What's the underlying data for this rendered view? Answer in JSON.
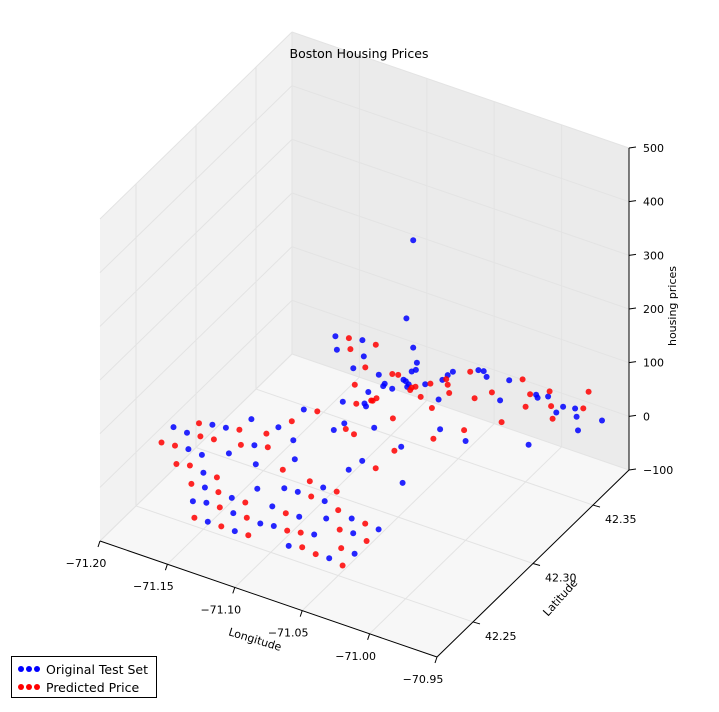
{
  "chart_data": {
    "type": "scatter",
    "title": "Boston Housing Prices",
    "xlabel": "Longitude",
    "ylabel": "Latitude",
    "zlabel": "housing prices",
    "xlim": [
      -71.2,
      -70.95
    ],
    "ylim": [
      42.22,
      42.38
    ],
    "zlim": [
      -100,
      500
    ],
    "x_ticks": [
      "−71.20",
      "−71.15",
      "−71.10",
      "−71.05",
      "−71.00",
      "−70.95"
    ],
    "y_ticks": [
      "42.25",
      "42.30",
      "42.35"
    ],
    "z_ticks": [
      "−100",
      "0",
      "100",
      "200",
      "300",
      "400",
      "500"
    ],
    "grid": true,
    "legend_position": "lower-left",
    "series": [
      {
        "name": "Original Test Set",
        "color": "#0000ff",
        "points": [
          [
            -71.03,
            42.29,
            455
          ],
          [
            -71.035,
            42.29,
            305
          ],
          [
            -71.03,
            42.29,
            255
          ],
          [
            -71.028,
            42.29,
            215
          ],
          [
            -71.04,
            42.3,
            180
          ],
          [
            -71.045,
            42.31,
            170
          ],
          [
            -71.03,
            42.3,
            165
          ],
          [
            -71.05,
            42.295,
            150
          ],
          [
            -71.02,
            42.3,
            145
          ],
          [
            -71.06,
            42.3,
            140
          ],
          [
            -71.055,
            42.31,
            130
          ],
          [
            -71.035,
            42.32,
            125
          ],
          [
            -71.01,
            42.29,
            120
          ],
          [
            -71.065,
            42.29,
            115
          ],
          [
            -71.05,
            42.28,
            110
          ],
          [
            -71.04,
            42.33,
            108
          ],
          [
            -71.07,
            42.31,
            105
          ],
          [
            -71.02,
            42.34,
            100
          ],
          [
            -71.06,
            42.32,
            95
          ],
          [
            -71.03,
            42.28,
            92
          ],
          [
            -71.075,
            42.3,
            90
          ],
          [
            -71.045,
            42.34,
            88
          ],
          [
            -71.0,
            42.3,
            85
          ],
          [
            -71.08,
            42.28,
            80
          ],
          [
            -71.035,
            42.35,
            78
          ],
          [
            -71.05,
            42.27,
            70
          ],
          [
            -71.01,
            42.34,
            65
          ],
          [
            -71.07,
            42.33,
            60
          ],
          [
            -71.02,
            42.27,
            55
          ],
          [
            -71.04,
            42.36,
            50
          ],
          [
            -71.06,
            42.27,
            45
          ],
          [
            -71.09,
            42.3,
            40
          ],
          [
            -71.0,
            42.36,
            35
          ],
          [
            -70.98,
            42.33,
            30
          ],
          [
            -71.03,
            42.37,
            20
          ],
          [
            -71.01,
            42.37,
            10
          ],
          [
            -70.99,
            42.37,
            5
          ],
          [
            -70.97,
            42.36,
            0
          ],
          [
            -70.98,
            42.37,
            -5
          ],
          [
            -70.995,
            42.37,
            -10
          ],
          [
            -71.01,
            42.38,
            -15
          ],
          [
            -70.99,
            42.38,
            -20
          ],
          [
            -70.97,
            42.38,
            -25
          ],
          [
            -71.08,
            42.34,
            40
          ],
          [
            -71.1,
            42.34,
            35
          ],
          [
            -71.12,
            42.35,
            30
          ],
          [
            -71.14,
            42.35,
            25
          ],
          [
            -71.13,
            42.36,
            30
          ],
          [
            -71.15,
            42.36,
            20
          ],
          [
            -71.11,
            42.33,
            60
          ],
          [
            -71.09,
            42.32,
            55
          ],
          [
            -71.1,
            42.31,
            50
          ],
          [
            -71.12,
            42.3,
            40
          ],
          [
            -71.11,
            42.28,
            35
          ],
          [
            -71.13,
            42.27,
            30
          ],
          [
            -71.14,
            42.26,
            28
          ],
          [
            -71.12,
            42.26,
            25
          ],
          [
            -71.1,
            42.27,
            30
          ],
          [
            -71.09,
            42.25,
            28
          ],
          [
            -71.08,
            42.25,
            30
          ],
          [
            -71.07,
            42.26,
            25
          ],
          [
            -71.06,
            42.25,
            30
          ],
          [
            -71.05,
            42.24,
            28
          ],
          [
            -71.13,
            42.29,
            20
          ],
          [
            -71.15,
            42.29,
            18
          ],
          [
            -71.16,
            42.28,
            15
          ],
          [
            -71.17,
            42.28,
            12
          ],
          [
            -71.18,
            42.27,
            10
          ],
          [
            -71.17,
            42.26,
            10
          ],
          [
            -71.19,
            42.27,
            12
          ],
          [
            -71.16,
            42.26,
            8
          ],
          [
            -71.15,
            42.25,
            5
          ],
          [
            -71.14,
            42.24,
            8
          ],
          [
            -71.13,
            42.23,
            10
          ],
          [
            -71.12,
            42.24,
            6
          ],
          [
            -71.11,
            42.23,
            8
          ],
          [
            -71.1,
            42.22,
            5
          ],
          [
            -71.09,
            42.23,
            6
          ],
          [
            -71.14,
            42.23,
            4
          ],
          [
            -71.12,
            42.22,
            5
          ],
          [
            -71.11,
            42.25,
            10
          ],
          [
            -71.04,
            42.25,
            15
          ],
          [
            -71.03,
            42.24,
            18
          ],
          [
            -71.02,
            42.25,
            12
          ],
          [
            -71.05,
            42.23,
            20
          ],
          [
            -71.03,
            42.22,
            15
          ],
          [
            -71.06,
            42.22,
            12
          ],
          [
            -71.08,
            42.23,
            10
          ],
          [
            -71.07,
            42.24,
            14
          ],
          [
            -71.09,
            42.24,
            16
          ],
          [
            -71.02,
            42.23,
            10
          ]
        ]
      },
      {
        "name": "Predicted Price",
        "color": "#ff0000",
        "points": [
          [
            -71.05,
            42.3,
            165
          ],
          [
            -71.04,
            42.3,
            150
          ],
          [
            -71.035,
            42.31,
            140
          ],
          [
            -71.06,
            42.29,
            130
          ],
          [
            -71.025,
            42.3,
            125
          ],
          [
            -71.05,
            42.31,
            115
          ],
          [
            -71.045,
            42.29,
            110
          ],
          [
            -71.03,
            42.32,
            105
          ],
          [
            -71.07,
            42.3,
            100
          ],
          [
            -71.015,
            42.29,
            98
          ],
          [
            -71.055,
            42.32,
            95
          ],
          [
            -71.04,
            42.33,
            90
          ],
          [
            -71.065,
            42.28,
            85
          ],
          [
            -71.02,
            42.33,
            82
          ],
          [
            -71.035,
            42.28,
            80
          ],
          [
            -71.075,
            42.31,
            78
          ],
          [
            -71.01,
            42.31,
            75
          ],
          [
            -71.05,
            42.34,
            70
          ],
          [
            -71.04,
            42.27,
            65
          ],
          [
            -71.08,
            42.29,
            60
          ],
          [
            -71.0,
            42.33,
            55
          ],
          [
            -71.06,
            42.33,
            50
          ],
          [
            -71.025,
            42.35,
            45
          ],
          [
            -71.05,
            42.36,
            40
          ],
          [
            -71.0,
            42.35,
            40
          ],
          [
            -70.98,
            42.35,
            35
          ],
          [
            -71.02,
            42.37,
            30
          ],
          [
            -71.0,
            42.37,
            25
          ],
          [
            -70.98,
            42.38,
            20
          ],
          [
            -70.975,
            42.37,
            15
          ],
          [
            -71.01,
            42.365,
            22
          ],
          [
            -70.99,
            42.36,
            28
          ],
          [
            -71.09,
            42.34,
            45
          ],
          [
            -71.11,
            42.34,
            40
          ],
          [
            -71.13,
            42.35,
            35
          ],
          [
            -71.12,
            42.36,
            30
          ],
          [
            -71.14,
            42.36,
            25
          ],
          [
            -71.1,
            42.32,
            60
          ],
          [
            -71.09,
            42.31,
            55
          ],
          [
            -71.11,
            42.3,
            45
          ],
          [
            -71.12,
            42.29,
            40
          ],
          [
            -71.12,
            42.27,
            35
          ],
          [
            -71.13,
            42.28,
            30
          ],
          [
            -71.1,
            42.26,
            32
          ],
          [
            -71.08,
            42.26,
            28
          ],
          [
            -71.07,
            42.25,
            30
          ],
          [
            -71.06,
            42.26,
            26
          ],
          [
            -71.05,
            42.25,
            22
          ],
          [
            -71.14,
            42.27,
            22
          ],
          [
            -71.15,
            42.28,
            20
          ],
          [
            -71.16,
            42.27,
            15
          ],
          [
            -71.17,
            42.27,
            12
          ],
          [
            -71.18,
            42.26,
            8
          ],
          [
            -71.16,
            42.25,
            10
          ],
          [
            -71.15,
            42.24,
            6
          ],
          [
            -71.14,
            42.25,
            5
          ],
          [
            -71.13,
            42.24,
            8
          ],
          [
            -71.12,
            42.23,
            10
          ],
          [
            -71.11,
            42.24,
            6
          ],
          [
            -71.1,
            42.23,
            8
          ],
          [
            -71.09,
            42.22,
            6
          ],
          [
            -71.13,
            42.22,
            4
          ],
          [
            -71.11,
            42.22,
            5
          ],
          [
            -71.04,
            42.24,
            16
          ],
          [
            -71.03,
            42.25,
            14
          ],
          [
            -71.02,
            42.24,
            12
          ],
          [
            -71.05,
            42.22,
            18
          ],
          [
            -71.04,
            42.22,
            14
          ],
          [
            -71.07,
            42.23,
            10
          ],
          [
            -71.08,
            42.24,
            12
          ],
          [
            -71.06,
            42.23,
            15
          ],
          [
            -71.18,
            42.28,
            6
          ],
          [
            -71.19,
            42.26,
            5
          ],
          [
            -71.17,
            42.25,
            4
          ],
          [
            -71.03,
            42.23,
            12
          ],
          [
            -71.02,
            42.22,
            10
          ]
        ]
      }
    ]
  }
}
